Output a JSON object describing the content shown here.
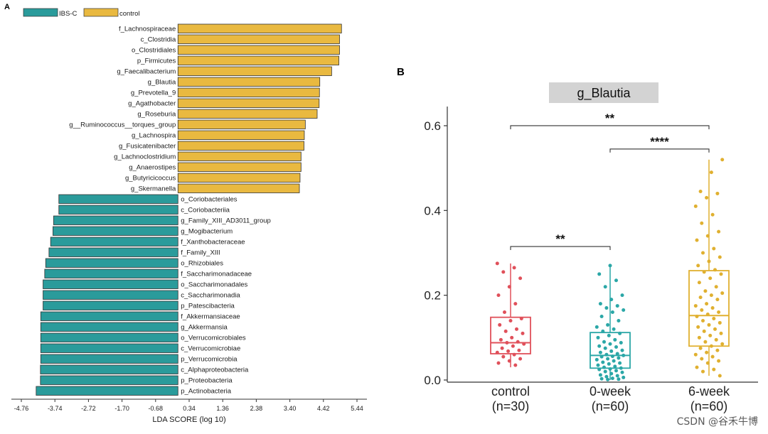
{
  "chart_data": [
    {
      "type": "bar",
      "orientation": "horizontal",
      "panel_label": "A",
      "xlabel": "LDA SCORE (log 10)",
      "xticks": [
        "-4.76",
        "-3.74",
        "-2.72",
        "-1.70",
        "-0.68",
        "0.34",
        "1.36",
        "2.38",
        "3.40",
        "4.42",
        "5.44"
      ],
      "xlim": [
        -4.76,
        5.44
      ],
      "legend": [
        {
          "name": "IBS-C",
          "color": "#2a9b9b"
        },
        {
          "name": "control",
          "color": "#e9b940"
        }
      ],
      "series": [
        {
          "name": "control",
          "color": "#e9b940",
          "items": [
            {
              "label": "f_Lachnospiraceae",
              "value": 4.97
            },
            {
              "label": "c_Clostridia",
              "value": 4.91
            },
            {
              "label": "o_Clostridiales",
              "value": 4.91
            },
            {
              "label": "p_Firmicutes",
              "value": 4.89
            },
            {
              "label": "g_Faecalibacterium",
              "value": 4.67
            },
            {
              "label": "g_Blautia",
              "value": 4.31
            },
            {
              "label": "g_Prevotella_9",
              "value": 4.3
            },
            {
              "label": "g_Agathobacter",
              "value": 4.29
            },
            {
              "label": "g_Roseburia",
              "value": 4.23
            },
            {
              "label": "g__Ruminococcus__torques_group",
              "value": 3.87
            },
            {
              "label": "g_Lachnospira",
              "value": 3.84
            },
            {
              "label": "g_Fusicatenibacter",
              "value": 3.83
            },
            {
              "label": "g_Lachnoclostridium",
              "value": 3.74
            },
            {
              "label": "g_Anaerostipes",
              "value": 3.74
            },
            {
              "label": "g_Butyricicoccus",
              "value": 3.71
            },
            {
              "label": "g_Skermanella",
              "value": 3.69
            }
          ]
        },
        {
          "name": "IBS-C",
          "color": "#2a9b9b",
          "items": [
            {
              "label": "o_Coriobacteriales",
              "value": -3.62
            },
            {
              "label": "c_Coriobacteriia",
              "value": -3.62
            },
            {
              "label": "g_Family_XIII_AD3011_group",
              "value": -3.78
            },
            {
              "label": "g_Mogibacterium",
              "value": -3.8
            },
            {
              "label": "f_Xanthobacteraceae",
              "value": -3.87
            },
            {
              "label": "f_Family_XIII",
              "value": -3.92
            },
            {
              "label": "o_Rhizobiales",
              "value": -4.02
            },
            {
              "label": "f_Saccharimonadaceae",
              "value": -4.05
            },
            {
              "label": "o_Saccharimonadales",
              "value": -4.1
            },
            {
              "label": "c_Saccharimonadia",
              "value": -4.1
            },
            {
              "label": "p_Patescibacteria",
              "value": -4.1
            },
            {
              "label": "f_Akkermansiaceae",
              "value": -4.17
            },
            {
              "label": "g_Akkermansia",
              "value": -4.17
            },
            {
              "label": "o_Verrucomicrobiales",
              "value": -4.17
            },
            {
              "label": "c_Verrucomicrobiae",
              "value": -4.17
            },
            {
              "label": "p_Verrucomicrobia",
              "value": -4.17
            },
            {
              "label": "c_Alphaproteobacteria",
              "value": -4.18
            },
            {
              "label": "p_Proteobacteria",
              "value": -4.18
            },
            {
              "label": "p_Actinobacteria",
              "value": -4.31
            }
          ]
        }
      ]
    },
    {
      "type": "box",
      "panel_label": "B",
      "title": "g_Blautia",
      "ylim": [
        0,
        0.65
      ],
      "yticks": [
        "0.0",
        "0.2",
        "0.4",
        "0.6"
      ],
      "groups": [
        {
          "name": "control",
          "n_label": "(n=30)",
          "color": "#e0505a",
          "q1": 0.062,
          "median": 0.088,
          "q3": 0.148,
          "whisker_low": 0.03,
          "whisker_high": 0.275,
          "points": [
            0.275,
            0.265,
            0.255,
            0.24,
            0.22,
            0.2,
            0.18,
            0.16,
            0.145,
            0.14,
            0.13,
            0.12,
            0.115,
            0.11,
            0.1,
            0.095,
            0.09,
            0.088,
            0.085,
            0.08,
            0.075,
            0.07,
            0.068,
            0.065,
            0.06,
            0.055,
            0.05,
            0.045,
            0.04,
            0.035
          ]
        },
        {
          "name": "0-week",
          "n_label": "(n=60)",
          "color": "#2ba7a7",
          "q1": 0.028,
          "median": 0.058,
          "q3": 0.112,
          "whisker_low": 0.0,
          "whisker_high": 0.27,
          "points": [
            0.27,
            0.25,
            0.235,
            0.22,
            0.2,
            0.19,
            0.18,
            0.175,
            0.17,
            0.165,
            0.16,
            0.15,
            0.14,
            0.13,
            0.125,
            0.12,
            0.115,
            0.11,
            0.105,
            0.1,
            0.095,
            0.09,
            0.088,
            0.085,
            0.08,
            0.078,
            0.075,
            0.07,
            0.068,
            0.065,
            0.062,
            0.06,
            0.058,
            0.056,
            0.055,
            0.052,
            0.05,
            0.048,
            0.045,
            0.042,
            0.04,
            0.038,
            0.035,
            0.032,
            0.03,
            0.028,
            0.026,
            0.025,
            0.022,
            0.02,
            0.018,
            0.015,
            0.012,
            0.01,
            0.008,
            0.006,
            0.004,
            0.003,
            0.002,
            0.001
          ]
        },
        {
          "name": "6-week",
          "n_label": "(n=60)",
          "color": "#e0b030",
          "q1": 0.08,
          "median": 0.152,
          "q3": 0.258,
          "whisker_low": 0.01,
          "whisker_high": 0.52,
          "points": [
            0.52,
            0.49,
            0.445,
            0.44,
            0.43,
            0.41,
            0.39,
            0.37,
            0.35,
            0.34,
            0.33,
            0.31,
            0.3,
            0.29,
            0.28,
            0.27,
            0.26,
            0.255,
            0.25,
            0.24,
            0.23,
            0.22,
            0.21,
            0.205,
            0.2,
            0.195,
            0.19,
            0.18,
            0.175,
            0.17,
            0.165,
            0.16,
            0.155,
            0.15,
            0.145,
            0.14,
            0.135,
            0.13,
            0.125,
            0.12,
            0.115,
            0.11,
            0.105,
            0.1,
            0.095,
            0.09,
            0.085,
            0.08,
            0.075,
            0.07,
            0.065,
            0.06,
            0.055,
            0.05,
            0.045,
            0.04,
            0.03,
            0.025,
            0.02,
            0.01
          ]
        }
      ],
      "comparisons": [
        {
          "from": "control",
          "to": "6-week",
          "y": 0.6,
          "label": "**"
        },
        {
          "from": "0-week",
          "to": "6-week",
          "y": 0.545,
          "label": "****"
        },
        {
          "from": "control",
          "to": "0-week",
          "y": 0.315,
          "label": "**"
        }
      ]
    }
  ],
  "watermark": "CSDN @谷禾牛博"
}
